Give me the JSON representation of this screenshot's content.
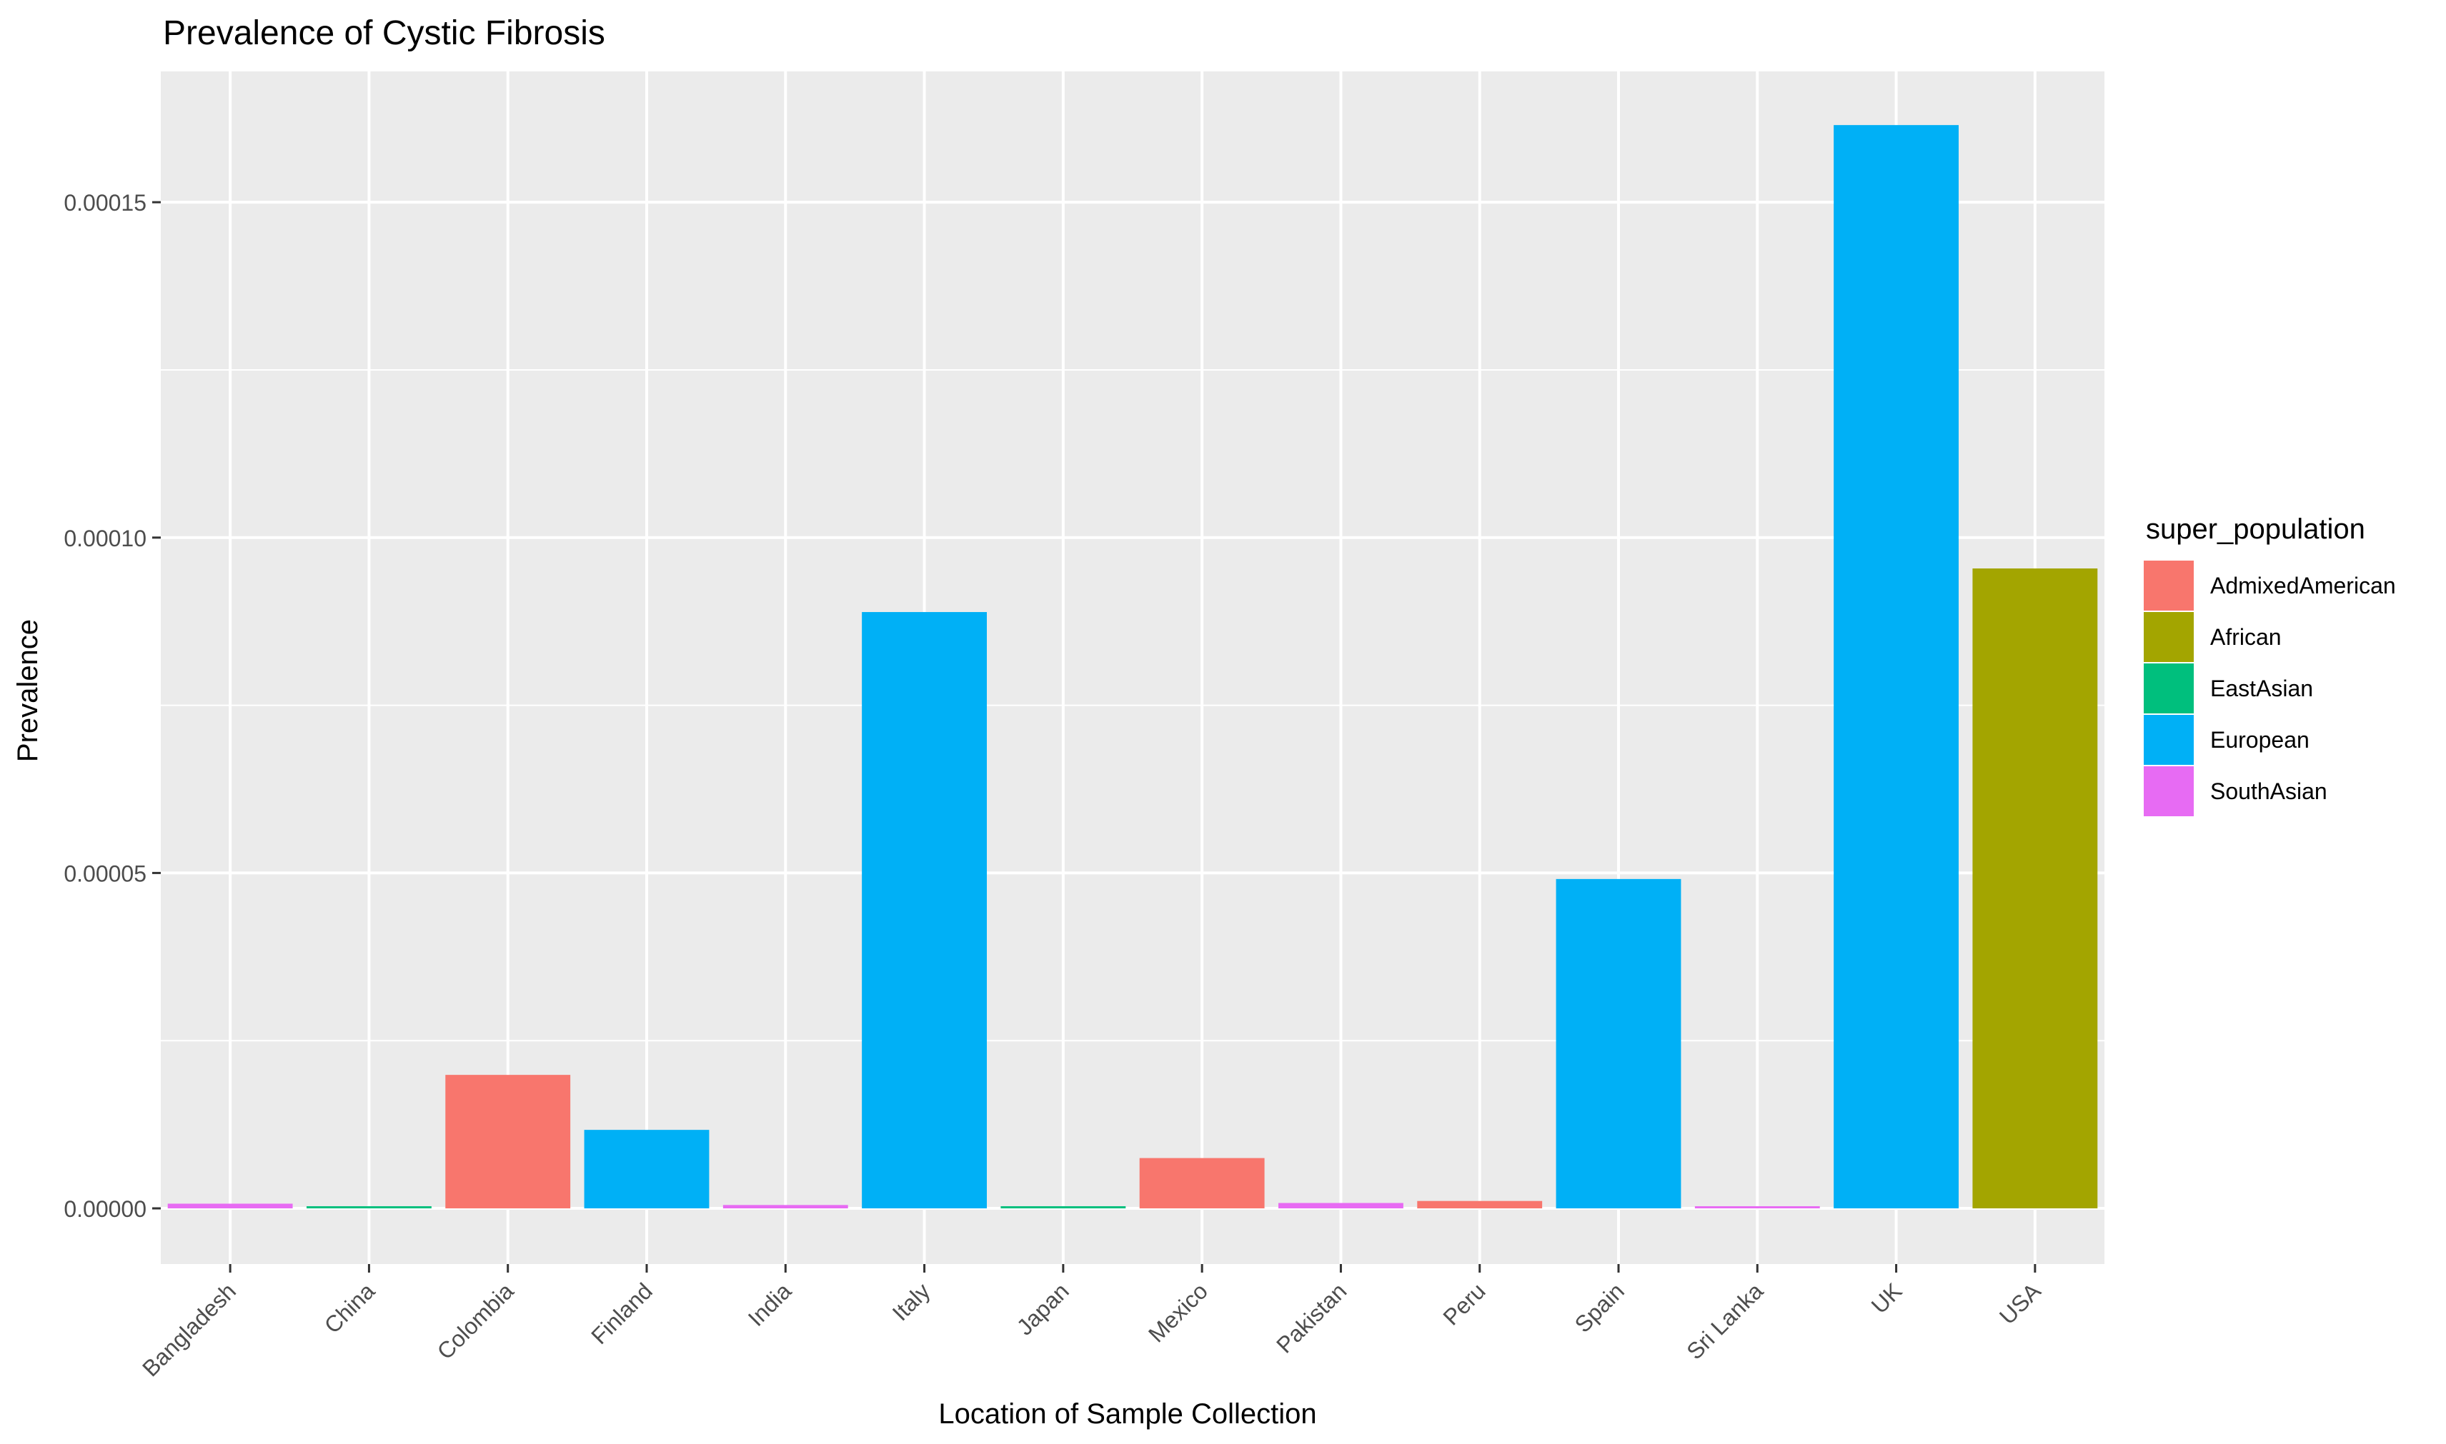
{
  "chart_data": {
    "type": "bar",
    "title": "Prevalence of Cystic Fibrosis",
    "xlabel": "Location of Sample Collection",
    "ylabel": "Prevalence",
    "categories": [
      "Bangladesh",
      "China",
      "Colombia",
      "Finland",
      "India",
      "Italy",
      "Japan",
      "Mexico",
      "Pakistan",
      "Peru",
      "Spain",
      "Sri Lanka",
      "UK",
      "USA"
    ],
    "values": [
      7e-07,
      2e-07,
      1.99e-05,
      1.17e-05,
      5e-07,
      8.89e-05,
      2e-07,
      7.5e-06,
      8e-07,
      1.1e-06,
      4.91e-05,
      3e-07,
      0.0001615,
      9.54e-05
    ],
    "groups": [
      "SouthAsian",
      "EastAsian",
      "AdmixedAmerican",
      "European",
      "SouthAsian",
      "European",
      "EastAsian",
      "AdmixedAmerican",
      "SouthAsian",
      "AdmixedAmerican",
      "European",
      "SouthAsian",
      "European",
      "African"
    ],
    "ylim": [
      -8.3e-06,
      0.0001695
    ],
    "yticks": [
      0,
      5e-05,
      0.0001,
      0.00015
    ],
    "ytick_labels": [
      "0.00000",
      "0.00005",
      "0.00010",
      "0.00015"
    ],
    "grid": true,
    "legend": {
      "title": "super_population",
      "position": "right",
      "entries": [
        {
          "name": "AdmixedAmerican",
          "color": "#F8766D"
        },
        {
          "name": "African",
          "color": "#A3A500"
        },
        {
          "name": "EastAsian",
          "color": "#00BF7D"
        },
        {
          "name": "European",
          "color": "#00B0F6"
        },
        {
          "name": "SouthAsian",
          "color": "#E76BF3"
        }
      ]
    },
    "colors": {
      "panel_background": "#EBEBEB",
      "grid_major": "#FFFFFF",
      "axis_text": "#4D4D4D",
      "title_text": "#000000"
    }
  }
}
